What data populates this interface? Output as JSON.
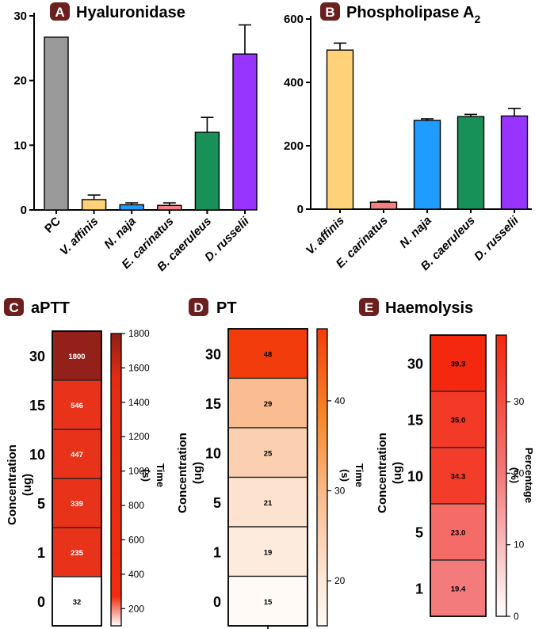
{
  "chart_data": [
    {
      "panel": "A",
      "type": "bar",
      "title": "Hyaluronidase",
      "categories": [
        "PC",
        "V. affinis",
        "N. naja",
        "E. carinatus",
        "B. caeruleus",
        "D. russelii"
      ],
      "values": [
        26.7,
        1.6,
        0.8,
        0.7,
        12.0,
        24.1
      ],
      "errors": [
        0,
        0.7,
        0.3,
        0.4,
        2.3,
        4.5
      ],
      "colors": [
        "#9a9a9a",
        "#ffd27a",
        "#1f9cff",
        "#f48080",
        "#179157",
        "#9933ff"
      ],
      "ylim": [
        0,
        30
      ],
      "yticks": [
        0,
        10,
        20,
        30
      ]
    },
    {
      "panel": "B",
      "type": "bar",
      "title": "Phospholipase A",
      "title_sub": "2",
      "categories": [
        "V. affinis",
        "E. carinatus",
        "N. naja",
        "B. caeruleus",
        "D. russelii"
      ],
      "values": [
        502,
        22,
        280,
        292,
        294
      ],
      "errors": [
        22,
        3,
        5,
        7,
        24
      ],
      "colors": [
        "#ffd27a",
        "#f48080",
        "#1f9cff",
        "#179157",
        "#9933ff"
      ],
      "ylim": [
        0,
        600
      ],
      "yticks": [
        0,
        200,
        400,
        600
      ]
    },
    {
      "panel": "C",
      "type": "heatmap",
      "title": "aPTT",
      "ylabel": "Concentration",
      "ylabel_unit": "(ug)",
      "rows": [
        "30",
        "15",
        "10",
        "5",
        "1",
        "0"
      ],
      "values": [
        "1800",
        "546",
        "447",
        "339",
        "235",
        "32"
      ],
      "colorbar": {
        "label": "Time",
        "unit": "(s)",
        "ticks": [
          "1800",
          "1600",
          "1400",
          "1200",
          "1000",
          "800",
          "600",
          "400",
          "200"
        ],
        "min": 100,
        "max": 1800
      }
    },
    {
      "panel": "D",
      "type": "heatmap",
      "title": "PT",
      "ylabel": "Concentration",
      "ylabel_unit": "(ug)",
      "rows": [
        "30",
        "15",
        "10",
        "5",
        "1",
        "0"
      ],
      "values": [
        "48",
        "29",
        "25",
        "21",
        "19",
        "15"
      ],
      "colorbar": {
        "label": "Time",
        "unit": "(s)",
        "ticks": [
          "40",
          "30",
          "20"
        ],
        "min": 15,
        "max": 48
      }
    },
    {
      "panel": "E",
      "type": "heatmap",
      "title": "Haemolysis",
      "ylabel": "Concentration",
      "ylabel_unit": "(ug)",
      "rows": [
        "30",
        "15",
        "10",
        "5",
        "1"
      ],
      "values": [
        "39.3",
        "35.0",
        "34.3",
        "23.0",
        "19.4"
      ],
      "colorbar": {
        "label": "Percentage",
        "unit": "(%)",
        "ticks": [
          "30",
          "20",
          "10",
          "0"
        ],
        "min": 0,
        "max": 39.3
      }
    }
  ],
  "badge_color": "#6b1f1f"
}
